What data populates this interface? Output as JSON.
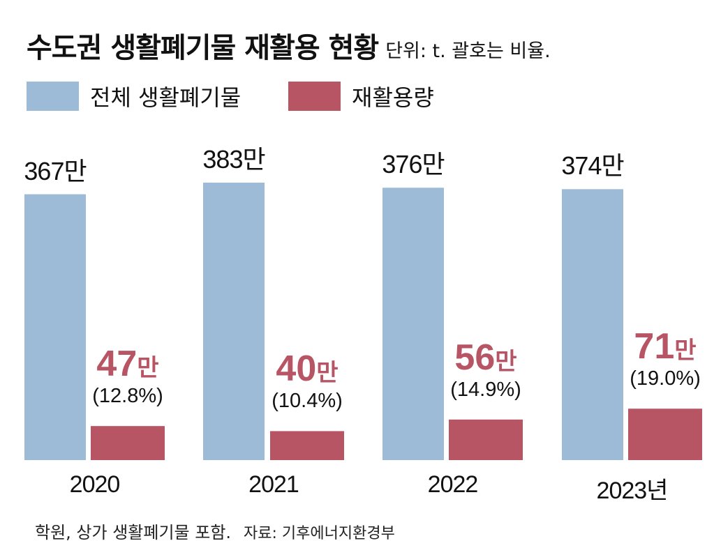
{
  "colors": {
    "total": "#9dbbd6",
    "recycled": "#b75564"
  },
  "header": {
    "title": "수도권 생활폐기물 재활용 현황",
    "unit_note": "단위: t. 괄호는 비율."
  },
  "legend": [
    {
      "label": "전체 생활폐기물",
      "color_key": "total"
    },
    {
      "label": "재활용량",
      "color_key": "recycled"
    }
  ],
  "chart_data": {
    "type": "bar",
    "title": "수도권 생활폐기물 재활용 현황",
    "unit": "t",
    "categories": [
      "2020",
      "2021",
      "2022",
      "2023년"
    ],
    "series": [
      {
        "name": "전체 생활폐기물",
        "values": [
          3670000,
          3830000,
          3760000,
          3740000
        ],
        "labels": [
          "367만",
          "383만",
          "376만",
          "374만"
        ]
      },
      {
        "name": "재활용량",
        "values": [
          470000,
          400000,
          560000,
          710000
        ],
        "label_numbers": [
          "47",
          "40",
          "56",
          "71"
        ],
        "label_unit": "만",
        "percent_labels": [
          "(12.8%)",
          "(10.4%)",
          "(14.9%)",
          "(19.0%)"
        ]
      }
    ],
    "ylim": [
      0,
      3830000
    ],
    "grid": false,
    "legend_position": "top-left"
  },
  "footer": {
    "note": "학원, 상가 생활폐기물 포함.",
    "source": "자료: 기후에너지환경부"
  }
}
